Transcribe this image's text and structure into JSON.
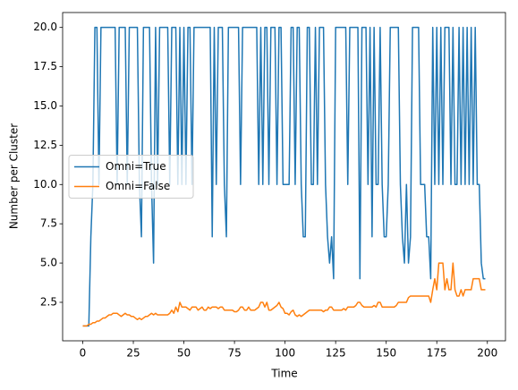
{
  "chart_data": {
    "type": "line",
    "xlabel": "Time",
    "ylabel": "Number per Cluster",
    "x": [
      0,
      1,
      2,
      3,
      4,
      5,
      6,
      7,
      8,
      9,
      10,
      11,
      12,
      13,
      14,
      15,
      16,
      17,
      18,
      19,
      20,
      21,
      22,
      23,
      24,
      25,
      26,
      27,
      28,
      29,
      30,
      31,
      32,
      33,
      34,
      35,
      36,
      37,
      38,
      39,
      40,
      41,
      42,
      43,
      44,
      45,
      46,
      47,
      48,
      49,
      50,
      51,
      52,
      53,
      54,
      55,
      56,
      57,
      58,
      59,
      60,
      61,
      62,
      63,
      64,
      65,
      66,
      67,
      68,
      69,
      70,
      71,
      72,
      73,
      74,
      75,
      76,
      77,
      78,
      79,
      80,
      81,
      82,
      83,
      84,
      85,
      86,
      87,
      88,
      89,
      90,
      91,
      92,
      93,
      94,
      95,
      96,
      97,
      98,
      99,
      100,
      101,
      102,
      103,
      104,
      105,
      106,
      107,
      108,
      109,
      110,
      111,
      112,
      113,
      114,
      115,
      116,
      117,
      118,
      119,
      120,
      121,
      122,
      123,
      124,
      125,
      126,
      127,
      128,
      129,
      130,
      131,
      132,
      133,
      134,
      135,
      136,
      137,
      138,
      139,
      140,
      141,
      142,
      143,
      144,
      145,
      146,
      147,
      148,
      149,
      150,
      151,
      152,
      153,
      154,
      155,
      156,
      157,
      158,
      159,
      160,
      161,
      162,
      163,
      164,
      165,
      166,
      167,
      168,
      169,
      170,
      171,
      172,
      173,
      174,
      175,
      176,
      177,
      178,
      179,
      180,
      181,
      182,
      183,
      184,
      185,
      186,
      187,
      188,
      189,
      190,
      191,
      192,
      193,
      194,
      195,
      196,
      197,
      198,
      199
    ],
    "series": [
      {
        "name": "Omni=True",
        "color": "#1f77b4",
        "values": [
          1,
          1,
          1,
          1,
          6.67,
          10,
          20,
          20,
          10,
          20,
          20,
          20,
          20,
          20,
          20,
          20,
          20,
          10,
          20,
          20,
          20,
          20,
          10,
          20,
          20,
          20,
          20,
          20,
          10,
          6.67,
          20,
          20,
          20,
          20,
          10,
          5,
          20,
          10,
          20,
          20,
          20,
          20,
          20,
          10,
          20,
          20,
          20,
          10,
          20,
          10,
          20,
          10,
          20,
          20,
          10,
          20,
          20,
          20,
          20,
          20,
          20,
          20,
          20,
          20,
          6.67,
          20,
          10,
          20,
          20,
          20,
          10,
          6.67,
          20,
          20,
          20,
          20,
          20,
          20,
          10,
          20,
          20,
          20,
          20,
          20,
          20,
          20,
          20,
          10,
          20,
          10,
          20,
          20,
          10,
          20,
          20,
          20,
          10,
          20,
          20,
          10,
          10,
          10,
          10,
          20,
          20,
          10,
          20,
          20,
          10,
          6.67,
          6.67,
          20,
          20,
          10,
          10,
          20,
          10,
          20,
          20,
          20,
          10,
          6.67,
          5,
          6.67,
          4,
          20,
          20,
          20,
          20,
          20,
          20,
          10,
          20,
          20,
          20,
          20,
          20,
          4,
          20,
          20,
          20,
          10,
          20,
          6.67,
          20,
          10,
          10,
          20,
          10,
          6.67,
          6.67,
          10,
          20,
          20,
          20,
          20,
          20,
          10,
          6.67,
          5,
          10,
          5,
          6.67,
          20,
          20,
          20,
          20,
          10,
          10,
          10,
          6.67,
          6.67,
          4,
          20,
          10,
          20,
          10,
          20,
          10,
          20,
          20,
          20,
          10,
          20,
          10,
          10,
          20,
          10,
          20,
          10,
          20,
          10,
          20,
          10,
          20,
          10,
          10,
          5,
          4,
          4
        ]
      },
      {
        "name": "Omni=False",
        "color": "#ff7f0e",
        "values": [
          1,
          1,
          1,
          1.1,
          1.1,
          1.2,
          1.2,
          1.3,
          1.3,
          1.4,
          1.5,
          1.5,
          1.6,
          1.7,
          1.7,
          1.8,
          1.8,
          1.8,
          1.7,
          1.6,
          1.7,
          1.8,
          1.7,
          1.7,
          1.6,
          1.6,
          1.5,
          1.4,
          1.5,
          1.4,
          1.5,
          1.6,
          1.6,
          1.7,
          1.8,
          1.7,
          1.8,
          1.7,
          1.7,
          1.7,
          1.7,
          1.7,
          1.7,
          1.8,
          2,
          1.8,
          2.2,
          1.9,
          2.5,
          2.2,
          2.2,
          2.2,
          2.1,
          2,
          2.2,
          2.2,
          2.2,
          2,
          2.1,
          2.2,
          2,
          2,
          2.2,
          2.1,
          2.2,
          2.2,
          2.2,
          2.1,
          2.2,
          2.2,
          2,
          2,
          2,
          2,
          2,
          1.9,
          1.9,
          2,
          2.2,
          2.2,
          2,
          2,
          2.2,
          2,
          2,
          2,
          2.1,
          2.2,
          2.5,
          2.5,
          2.2,
          2.5,
          2,
          2,
          2.1,
          2.2,
          2.3,
          2.5,
          2.2,
          2.1,
          1.8,
          1.8,
          1.7,
          1.9,
          2,
          1.7,
          1.6,
          1.7,
          1.6,
          1.7,
          1.8,
          1.9,
          2,
          2,
          2,
          2,
          2,
          2,
          2,
          1.9,
          2,
          2,
          2.2,
          2.2,
          2,
          2,
          2,
          2,
          2,
          2.1,
          2,
          2.2,
          2.2,
          2.2,
          2.2,
          2.3,
          2.5,
          2.5,
          2.3,
          2.2,
          2.2,
          2.2,
          2.2,
          2.2,
          2.3,
          2.2,
          2.5,
          2.5,
          2.2,
          2.2,
          2.2,
          2.2,
          2.2,
          2.2,
          2.2,
          2.3,
          2.5,
          2.5,
          2.5,
          2.5,
          2.5,
          2.8,
          2.9,
          2.9,
          2.9,
          2.9,
          2.9,
          2.9,
          2.9,
          2.9,
          2.9,
          2.9,
          2.5,
          3.3,
          4,
          3.3,
          5,
          5,
          5,
          3.3,
          4,
          3.3,
          3.3,
          5,
          3.3,
          2.9,
          2.9,
          3.3,
          2.9,
          3.3,
          3.3,
          3.3,
          3.3,
          4,
          4,
          4,
          4,
          3.3,
          3.3,
          3.3
        ]
      }
    ],
    "xlim": [
      -9.95,
      208.95
    ],
    "xticks": [
      0,
      25,
      50,
      75,
      100,
      125,
      150,
      175,
      200
    ],
    "ylim": [
      0.05,
      20.95
    ],
    "yticks": [
      2.5,
      {
        "value": 5,
        "label": "5.0"
      },
      7.5,
      {
        "value": 10,
        "label": "10.0"
      },
      12.5,
      {
        "value": 15,
        "label": "15.0"
      },
      17.5,
      {
        "value": 20,
        "label": "20.0"
      }
    ],
    "legend": "center left"
  }
}
